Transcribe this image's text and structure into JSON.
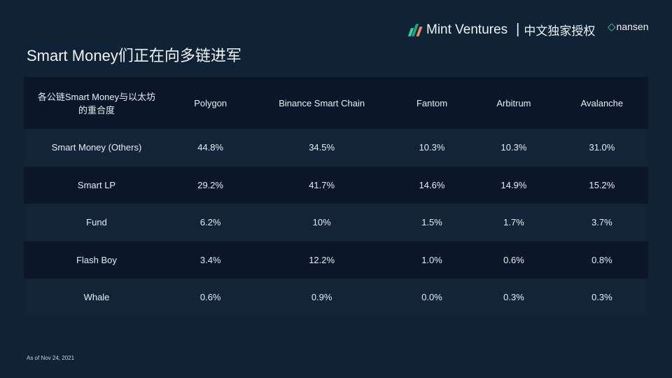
{
  "title": "Smart Money们正在向多链进军",
  "brand": {
    "name": "Mint Ventures",
    "separator": "|",
    "tagline": "中文独家授权",
    "partner": "nansen",
    "colors": [
      "#2ed3a8",
      "#1fa37e",
      "#f08a5d"
    ]
  },
  "table": {
    "headers": [
      "各公链Smart Money与以太坊的重合度",
      "Polygon",
      "Binance Smart Chain",
      "Fantom",
      "Arbitrum",
      "Avalanche"
    ],
    "rows": [
      {
        "label": "Smart Money (Others)",
        "values": [
          "44.8%",
          "34.5%",
          "10.3%",
          "10.3%",
          "31.0%"
        ]
      },
      {
        "label": "Smart LP",
        "values": [
          "29.2%",
          "41.7%",
          "14.6%",
          "14.9%",
          "15.2%"
        ]
      },
      {
        "label": "Fund",
        "values": [
          "6.2%",
          "10%",
          "1.5%",
          "1.7%",
          "3.7%"
        ]
      },
      {
        "label": "Flash Boy",
        "values": [
          "3.4%",
          "12.2%",
          "1.0%",
          "0.6%",
          "0.8%"
        ]
      },
      {
        "label": "Whale",
        "values": [
          "0.6%",
          "0.9%",
          "0.0%",
          "0.3%",
          "0.3%"
        ]
      }
    ]
  },
  "footer": "As of Nov 24, 2021"
}
